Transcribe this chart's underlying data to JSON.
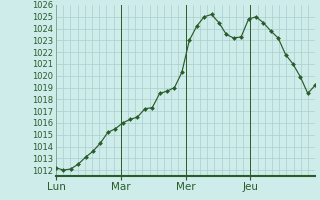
{
  "x_labels": [
    "Lun",
    "Mar",
    "Mer",
    "Jeu"
  ],
  "ylim": [
    1011.5,
    1026.0
  ],
  "yticks": [
    1012,
    1013,
    1014,
    1015,
    1016,
    1017,
    1018,
    1019,
    1020,
    1021,
    1022,
    1023,
    1024,
    1025
  ],
  "background_color": "#cdecea",
  "grid_color": "#aacfcc",
  "line_color": "#2a5c2a",
  "marker_color": "#2a5c2a",
  "axis_color": "#2a5c2a",
  "values": [
    1012.2,
    1012.0,
    1012.1,
    1012.5,
    1013.1,
    1013.6,
    1014.3,
    1015.2,
    1015.5,
    1016.0,
    1016.3,
    1016.5,
    1017.2,
    1017.3,
    1018.5,
    1018.7,
    1019.0,
    1020.3,
    1023.0,
    1024.2,
    1025.0,
    1025.2,
    1024.5,
    1023.5,
    1023.2,
    1023.3,
    1024.8,
    1025.0,
    1024.5,
    1023.8,
    1023.2,
    1021.8,
    1021.0,
    1019.9,
    1018.5,
    1019.2
  ],
  "num_days": 4,
  "points_per_day": 9,
  "tick_fontsize": 6.0,
  "label_fontsize": 7.5
}
